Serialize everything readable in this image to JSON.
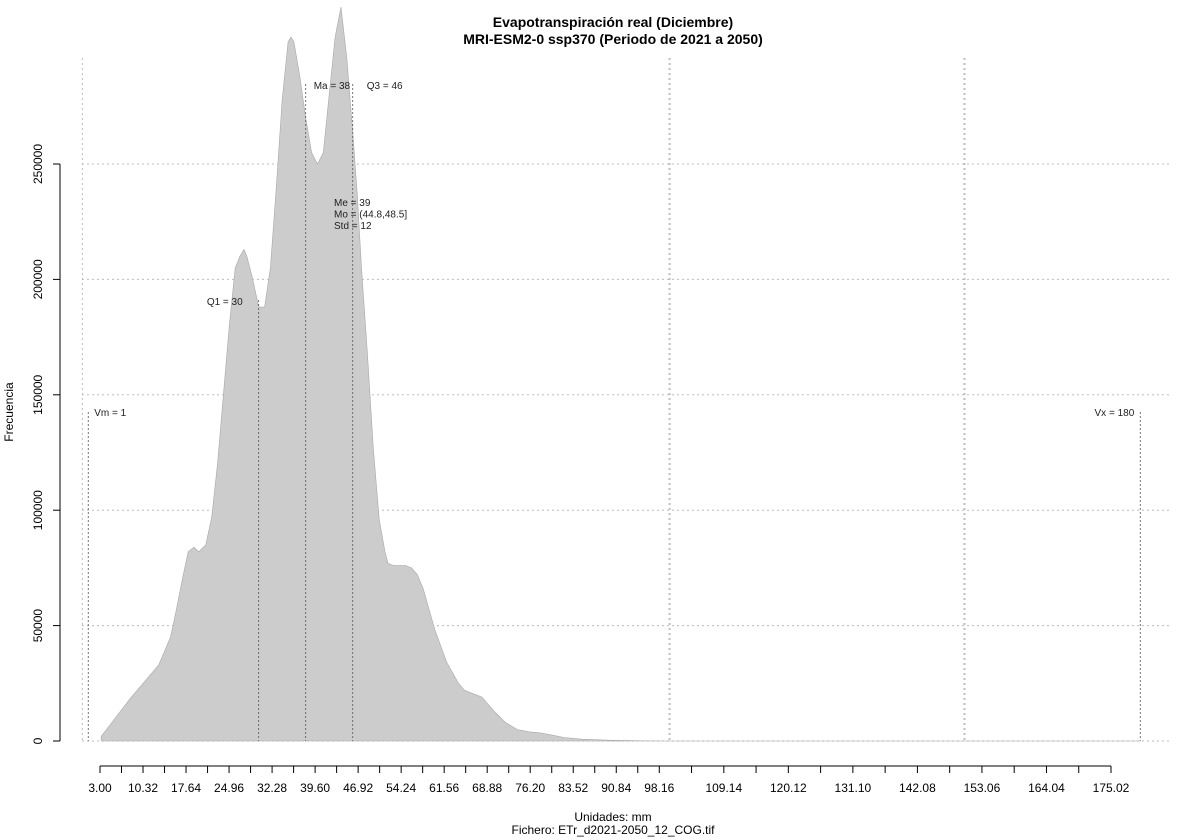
{
  "chart_data": {
    "type": "area",
    "title": "Evapotranspiración real (Diciembre)",
    "subtitle": "MRI-ESM2-0 ssp370 (Periodo de 2021 a 2050)",
    "xlabel": "Unidades: mm",
    "caption": "Fichero: ETr_d2021-2050_12_COG.tif",
    "ylabel": "Frecuencia",
    "xlim": [
      0,
      180
    ],
    "ylim": [
      0,
      280000
    ],
    "x_ticks": [
      3.0,
      6.66,
      10.32,
      13.98,
      17.64,
      21.3,
      24.96,
      28.62,
      32.28,
      35.94,
      39.6,
      43.26,
      46.92,
      50.58,
      54.24,
      57.9,
      61.56,
      65.22,
      68.88,
      72.54,
      76.2,
      79.86,
      83.52,
      87.18,
      90.84,
      94.5,
      98.16,
      103.65,
      109.14,
      114.63,
      120.12,
      125.61,
      131.1,
      136.59,
      142.08,
      147.57,
      153.06,
      158.55,
      164.04,
      169.53,
      175.02
    ],
    "x_tick_labels": [
      "3.00",
      "10.32",
      "17.64",
      "24.96",
      "32.28",
      "39.60",
      "46.92",
      "54.24",
      "61.56",
      "68.88",
      "76.20",
      "83.52",
      "90.84",
      "98.16",
      "109.14",
      "120.12",
      "131.10",
      "142.08",
      "153.06",
      "164.04",
      "175.02"
    ],
    "y_ticks": [
      0,
      50000,
      100000,
      150000,
      200000,
      250000
    ],
    "y_tick_labels": [
      "0",
      "50000",
      "100000",
      "150000",
      "200000",
      "250000"
    ],
    "x_grid": [
      0,
      100,
      150
    ],
    "series": [
      {
        "color": "#cccccc",
        "x": [
          3.2,
          5,
          8,
          11,
          13,
          15,
          16,
          17,
          18,
          19,
          19.8,
          21,
          22,
          23,
          24,
          25,
          26,
          26.8,
          27.5,
          28,
          29,
          30,
          31,
          32,
          33,
          34,
          35,
          35.5,
          36,
          37,
          38,
          39,
          40,
          41,
          42,
          43,
          44,
          45,
          46,
          46.8,
          47.5,
          48.5,
          49.5,
          50.5,
          51.5,
          52,
          53,
          54,
          55,
          56,
          57,
          58,
          60,
          62,
          64,
          65,
          66,
          67,
          68,
          69,
          70,
          72,
          74,
          76,
          78,
          80,
          82,
          85,
          90,
          95,
          100,
          120,
          140,
          160,
          175,
          180
        ],
        "y": [
          2000,
          8000,
          18000,
          27000,
          33000,
          45000,
          57000,
          70000,
          82000,
          84000,
          82000,
          85000,
          97000,
          120000,
          150000,
          180000,
          205000,
          210000,
          213000,
          210000,
          200000,
          188000,
          188000,
          205000,
          240000,
          278000,
          303000,
          305000,
          303000,
          288000,
          270000,
          255000,
          250000,
          255000,
          280000,
          305000,
          318000,
          296000,
          264000,
          236000,
          205000,
          168000,
          127000,
          96000,
          82000,
          77000,
          76000,
          76000,
          76000,
          75000,
          72000,
          66000,
          48000,
          34000,
          25000,
          22000,
          21000,
          20000,
          19000,
          16000,
          13000,
          8000,
          5000,
          4000,
          3500,
          2500,
          1500,
          800,
          300,
          100,
          0,
          0,
          0,
          0,
          0,
          0
        ]
      }
    ],
    "vlines": [
      {
        "label": "Vm = 1",
        "x": 1
      },
      {
        "label": "Q1 = 30",
        "x": 30
      },
      {
        "label": "Ma = 38",
        "x": 38
      },
      {
        "label": "Q3 = 46",
        "x": 46
      },
      {
        "label": "Vx = 180",
        "x": 180
      }
    ],
    "stats_text": [
      "Me = 39",
      "Mo = (44.8,48.5]",
      "Std = 12"
    ]
  }
}
